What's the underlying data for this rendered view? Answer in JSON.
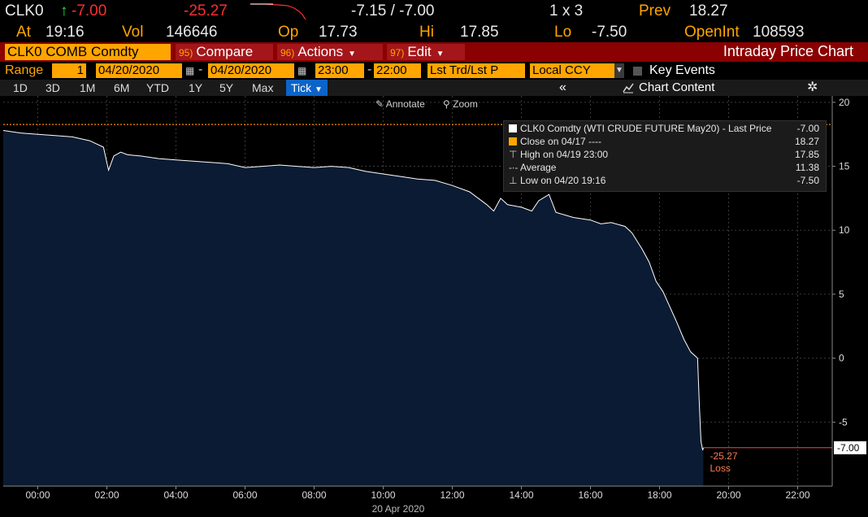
{
  "quote": {
    "ticker": "CLK0",
    "arrow": "↑",
    "last": "-7.00",
    "change": "-25.27",
    "bid_ask": "-7.15 / -7.00",
    "size": "1 x 3",
    "prev_label": "Prev",
    "prev": "18.27",
    "at_label": "At",
    "time": "19:16",
    "vol_label": "Vol",
    "volume": "146646",
    "open_label": "Op",
    "open": "17.73",
    "high_label": "Hi",
    "high": "17.85",
    "low_label": "Lo",
    "low": "-7.50",
    "oi_label": "OpenInt",
    "open_interest": "108593"
  },
  "toolbar": {
    "security": "CLK0 COMB Comdty",
    "compare_num": "95)",
    "compare": "Compare",
    "actions_num": "96)",
    "actions": "Actions",
    "edit_num": "97)",
    "edit": "Edit",
    "title": "Intraday Price Chart"
  },
  "range": {
    "label": "Range",
    "value": "1",
    "start_date": "04/20/2020",
    "end_date": "04/20/2020",
    "start_time": "23:00",
    "end_time": "22:00",
    "field": "Lst Trd/Lst P",
    "currency": "Local CCY",
    "key_events": "Key Events"
  },
  "periods": [
    "1D",
    "3D",
    "1M",
    "6M",
    "YTD",
    "1Y",
    "5Y",
    "Max"
  ],
  "period_selected": "Tick",
  "chart_content": "Chart Content",
  "annotate": "Annotate",
  "zoom": "Zoom",
  "colors": {
    "area_fill": "#0b1b33",
    "area_line": "#ffffff",
    "prev_close_line": "#ff8c00",
    "loss_label": "#ff7a50",
    "last_line": "#ff4040"
  },
  "legend": [
    {
      "icon": "white-square",
      "label": "CLK0 Comdty (WTI CRUDE FUTURE May20) - Last Price",
      "value": "-7.00"
    },
    {
      "icon": "orange-square",
      "label": "Close on 04/17 ----",
      "value": "18.27"
    },
    {
      "icon": "high-marker",
      "label": "High on 04/19 23:00",
      "value": "17.85"
    },
    {
      "icon": "average-marker",
      "label": "Average",
      "value": "11.38"
    },
    {
      "icon": "low-marker",
      "label": "Low on 04/20 19:16",
      "value": "-7.50"
    }
  ],
  "chart_data": {
    "type": "area",
    "title": "",
    "xlabel": "20 Apr 2020",
    "ylabel": "",
    "x_ticks": [
      "00:00",
      "02:00",
      "04:00",
      "06:00",
      "08:00",
      "10:00",
      "12:00",
      "14:00",
      "16:00",
      "18:00",
      "20:00",
      "22:00"
    ],
    "y_ticks": [
      20,
      15,
      10,
      5,
      0,
      -5
    ],
    "ylim": [
      -10,
      20.5
    ],
    "xlim_hours": [
      -1.0,
      23.0
    ],
    "prev_close": 18.27,
    "last_value_label": "-7.00",
    "change_label": "-25.27",
    "change_caption": "Loss",
    "series": [
      {
        "name": "CLK0 Comdty - Last Price",
        "x_hours": [
          -1.0,
          -0.5,
          0.0,
          0.5,
          1.0,
          1.5,
          1.9,
          2.05,
          2.2,
          2.4,
          2.6,
          3.0,
          3.5,
          4.0,
          4.5,
          5.0,
          5.5,
          6.0,
          6.5,
          7.0,
          7.5,
          8.0,
          8.5,
          9.0,
          9.5,
          10.0,
          10.5,
          11.0,
          11.5,
          12.0,
          12.5,
          13.0,
          13.2,
          13.4,
          13.6,
          14.0,
          14.3,
          14.5,
          14.8,
          15.0,
          15.5,
          16.0,
          16.3,
          16.6,
          17.0,
          17.2,
          17.5,
          17.7,
          17.9,
          18.1,
          18.3,
          18.5,
          18.7,
          18.9,
          19.1,
          19.15,
          19.2,
          19.25,
          19.27
        ],
        "values": [
          17.8,
          17.6,
          17.5,
          17.4,
          17.3,
          17.0,
          16.5,
          14.7,
          15.8,
          16.1,
          15.9,
          15.8,
          15.6,
          15.5,
          15.4,
          15.3,
          15.2,
          14.9,
          15.0,
          15.1,
          15.0,
          14.9,
          15.0,
          14.9,
          14.6,
          14.4,
          14.2,
          14.0,
          13.9,
          13.5,
          13.0,
          12.0,
          11.5,
          12.5,
          12.0,
          11.8,
          11.5,
          12.3,
          12.8,
          11.4,
          11.0,
          10.8,
          10.5,
          10.6,
          10.3,
          9.8,
          8.5,
          7.5,
          6.0,
          5.2,
          4.0,
          2.8,
          1.5,
          0.5,
          0.0,
          -3.5,
          -6.5,
          -7.2,
          -7.0
        ]
      }
    ]
  }
}
